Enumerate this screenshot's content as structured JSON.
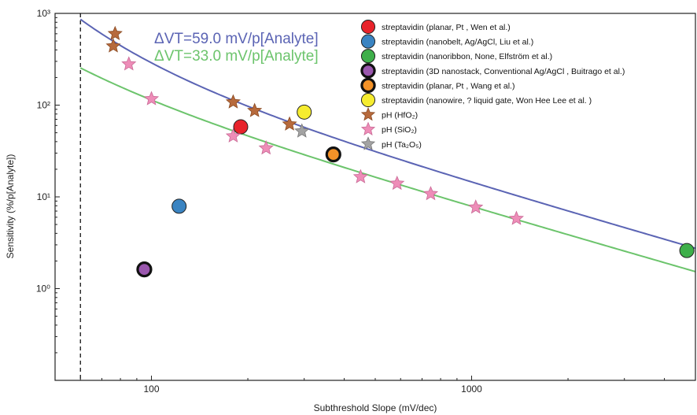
{
  "chart_data": {
    "type": "scatter",
    "xlabel": "Subthreshold Slope (mV/dec)",
    "ylabel": "Sensitivity (%/p[Analyte])",
    "xscale": "log",
    "yscale": "log",
    "xlim": [
      50,
      5000
    ],
    "ylim": [
      0.1,
      1000
    ],
    "x_tick_labels": [
      {
        "value": 100,
        "label": "100"
      },
      {
        "value": 1000,
        "label": "1000"
      }
    ],
    "y_tick_labels": [
      {
        "value": 1,
        "label": "10⁰"
      },
      {
        "value": 10,
        "label": "10¹"
      },
      {
        "value": 100,
        "label": "10²"
      },
      {
        "value": 1000,
        "label": "10³"
      }
    ],
    "reference_line": {
      "x": 60,
      "style": "dashed",
      "color": "#000000"
    },
    "curves": [
      {
        "delta_v": 59.0,
        "label": "ΔVT=59.0 mV/p[Analyte]",
        "color": "#5B64B4"
      },
      {
        "delta_v": 33.0,
        "label": "ΔVT=33.0 mV/p[Analyte]",
        "color": "#6CC46C"
      }
    ],
    "series": [
      {
        "name": "streptavidin (planar, Pt , Wen et al.)",
        "marker": "circle",
        "color": "#E8232B",
        "edge": "#222222",
        "points": [
          [
            190,
            58
          ]
        ]
      },
      {
        "name": "streptavidin (nanobelt, Ag/AgCl, Liu et al.)",
        "marker": "circle",
        "color": "#3A84C2",
        "edge": "#222222",
        "points": [
          [
            122,
            7.9
          ]
        ]
      },
      {
        "name": "streptavidin (nanoribbon, None, Elfström et al.)",
        "marker": "circle",
        "color": "#3EAF4A",
        "edge": "#222222",
        "points": [
          [
            4700,
            2.6
          ]
        ]
      },
      {
        "name": "streptavidin (3D nanostack, Conventional Ag/AgCl , Buitrago et al.)",
        "marker": "circle-thick",
        "color": "#9A57AE",
        "edge": "#111111",
        "points": [
          [
            95,
            1.62
          ]
        ]
      },
      {
        "name": "streptavidin (planar, Pt , Wang et al.)",
        "marker": "circle-thick",
        "color": "#F39228",
        "edge": "#111111",
        "points": [
          [
            370,
            29
          ]
        ]
      },
      {
        "name": "streptavidin (nanowire, ? liquid gate, Won Hee Lee et al. )",
        "marker": "circle",
        "color": "#F6EC2F",
        "edge": "#222222",
        "points": [
          [
            300,
            84
          ]
        ]
      },
      {
        "name": "pH (HfO₂)",
        "marker": "star",
        "color": "#B76A3C",
        "edge": "#8a4a22",
        "points": [
          [
            77,
            600
          ],
          [
            76,
            440
          ],
          [
            180,
            108
          ],
          [
            210,
            87
          ],
          [
            270,
            62
          ]
        ]
      },
      {
        "name": "pH (SiO₂)",
        "marker": "star",
        "color": "#EE8DB8",
        "edge": "#c96a96",
        "points": [
          [
            85,
            280
          ],
          [
            100,
            117
          ],
          [
            180,
            46
          ],
          [
            228,
            34
          ],
          [
            450,
            16.5
          ],
          [
            585,
            14
          ],
          [
            745,
            10.8
          ],
          [
            1030,
            7.7
          ],
          [
            1380,
            5.8
          ]
        ]
      },
      {
        "name": "pH (Ta₂O₅)",
        "marker": "star",
        "color": "#A3A3A3",
        "edge": "#777777",
        "points": [
          [
            295,
            52
          ]
        ]
      }
    ]
  }
}
